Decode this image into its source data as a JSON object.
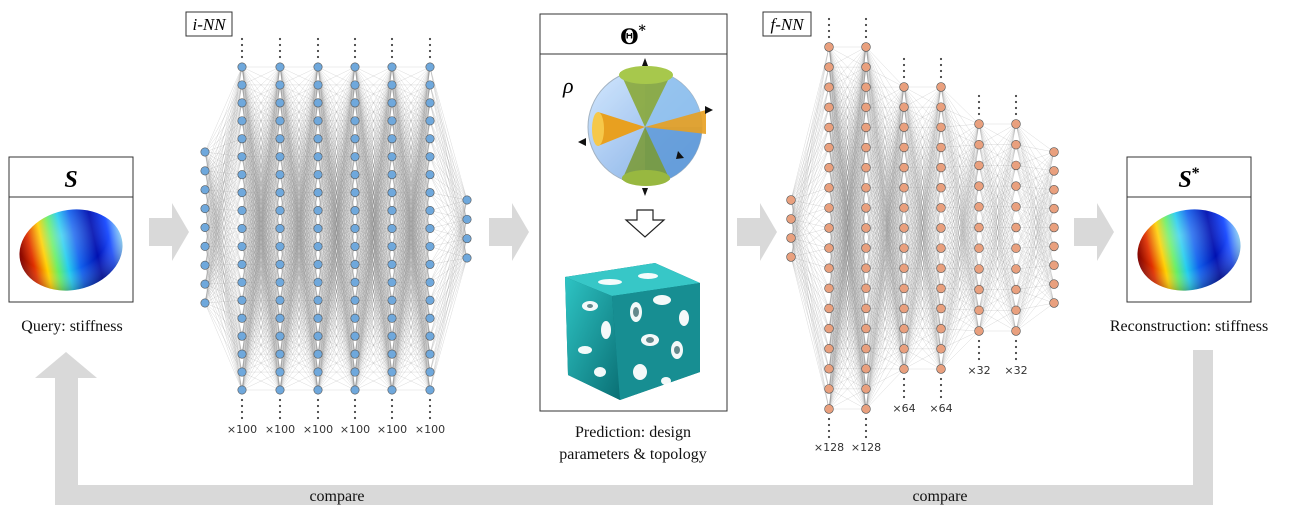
{
  "query_panel": {
    "symbol": "S",
    "caption": "Query: stiffness"
  },
  "reconstruction_panel": {
    "symbol": "S",
    "superscript": "*",
    "caption": "Reconstruction: stiffness"
  },
  "inverse_network": {
    "label": "i-NN",
    "input_nodes": 9,
    "hidden_layers": [
      "×100",
      "×100",
      "×100",
      "×100",
      "×100",
      "×100"
    ],
    "output_nodes": 4,
    "node_color": "#6fa8dc"
  },
  "forward_network": {
    "label": "f-NN",
    "input_nodes": 4,
    "hidden_layers": [
      "×128",
      "×128",
      "×64",
      "×64",
      "×32",
      "×32"
    ],
    "output_nodes": 9,
    "node_color": "#e9a07e"
  },
  "prediction_panel": {
    "symbol": "Θ",
    "superscript": "*",
    "density_symbol": "ρ",
    "caption_line1": "Prediction: design",
    "caption_line2": "parameters & topology"
  },
  "feedback": {
    "left_label": "compare",
    "right_label": "compare",
    "arrow_color": "#d9d9d9"
  }
}
